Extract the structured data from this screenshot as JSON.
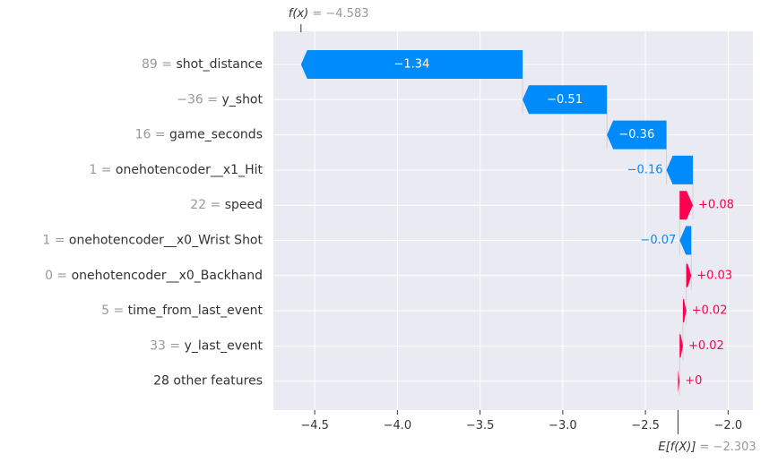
{
  "chart_data": {
    "type": "waterfall",
    "title": "",
    "xlabel": "",
    "ylabel": "",
    "xlim": [
      -4.75,
      -1.85
    ],
    "xticks": [
      -4.5,
      -4.0,
      -3.5,
      -3.0,
      -2.5,
      -2.0
    ],
    "xtick_labels": [
      "−4.5",
      "−4.0",
      "−3.5",
      "−3.0",
      "−2.5",
      "−2.0"
    ],
    "fx": {
      "prefix": "f(x)",
      "value_text": " = −4.583",
      "value": -4.583
    },
    "efx": {
      "prefix": "E[f(X)]",
      "value_text": " = −2.303",
      "value": -2.303
    },
    "grid": true,
    "features": [
      {
        "value": "89",
        "name": "shot_distance",
        "contribution": -1.34,
        "label": "−1.34",
        "start": -3.243,
        "end": -4.583
      },
      {
        "value": "−36",
        "name": "y_shot",
        "contribution": -0.51,
        "label": "−0.51",
        "start": -2.733,
        "end": -3.243
      },
      {
        "value": "16",
        "name": "game_seconds",
        "contribution": -0.36,
        "label": "−0.36",
        "start": -2.373,
        "end": -2.733
      },
      {
        "value": "1",
        "name": "onehotencoder__x1_Hit",
        "contribution": -0.16,
        "label": "−0.16",
        "start": -2.213,
        "end": -2.373
      },
      {
        "value": "22",
        "name": "speed",
        "contribution": 0.08,
        "label": "+0.08",
        "start": -2.293,
        "end": -2.213
      },
      {
        "value": "1",
        "name": "onehotencoder__x0_Wrist Shot",
        "contribution": -0.07,
        "label": "−0.07",
        "start": -2.223,
        "end": -2.293
      },
      {
        "value": "0",
        "name": "onehotencoder__x0_Backhand",
        "contribution": 0.03,
        "label": "+0.03",
        "start": -2.253,
        "end": -2.223
      },
      {
        "value": "5",
        "name": "time_from_last_event",
        "contribution": 0.02,
        "label": "+0.02",
        "start": -2.273,
        "end": -2.253
      },
      {
        "value": "33",
        "name": "y_last_event",
        "contribution": 0.02,
        "label": "+0.02",
        "start": -2.293,
        "end": -2.273
      },
      {
        "value": "",
        "name": "28 other features",
        "contribution": 0.0,
        "label": "+0",
        "start": -2.303,
        "end": -2.293
      }
    ],
    "colors": {
      "negative": "#008bfb",
      "positive": "#ff0051",
      "background": "#eaeaf2",
      "grid": "#ffffff",
      "value_gray": "#999999"
    }
  }
}
